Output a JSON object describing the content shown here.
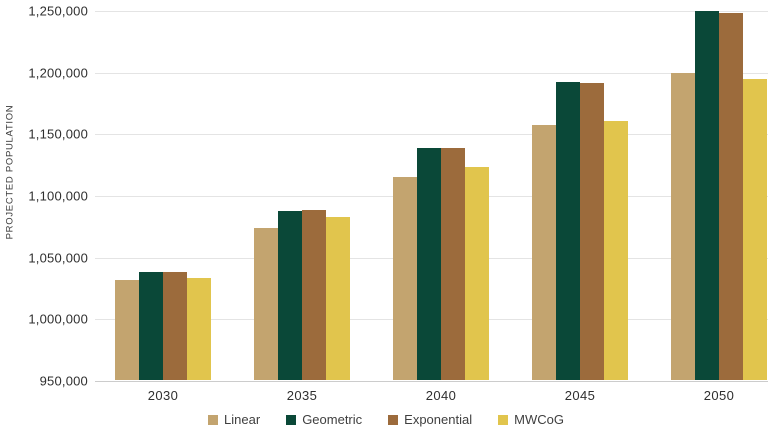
{
  "chart_data": {
    "type": "bar",
    "title": "",
    "xlabel": "",
    "ylabel": "PROJECTED POPULATION",
    "categories": [
      "2030",
      "2035",
      "2040",
      "2045",
      "2050"
    ],
    "series": [
      {
        "name": "Linear",
        "color": "#C3A46F",
        "values": [
          1031000,
          1073000,
          1115000,
          1157000,
          1199000
        ]
      },
      {
        "name": "Geometric",
        "color": "#0A4838",
        "values": [
          1038000,
          1087000,
          1138000,
          1192000,
          1249000
        ]
      },
      {
        "name": "Exponential",
        "color": "#9C6B3C",
        "values": [
          1038000,
          1088000,
          1138000,
          1191000,
          1248000
        ]
      },
      {
        "name": "MWCoG",
        "color": "#E1C54D",
        "values": [
          1033000,
          1082000,
          1123000,
          1160000,
          1194000
        ]
      }
    ],
    "ylim": [
      950000,
      1250000
    ],
    "ytick_step": 50000,
    "yticks": [
      "950,000",
      "1,000,000",
      "1,050,000",
      "1,100,000",
      "1,150,000",
      "1,200,000",
      "1,250,000"
    ],
    "grid": "horizontal",
    "legend_position": "bottom",
    "colors": {
      "grid": "#E4E4E4",
      "axis_text": "#2F2F2F",
      "background": "#FFFFFF"
    }
  }
}
